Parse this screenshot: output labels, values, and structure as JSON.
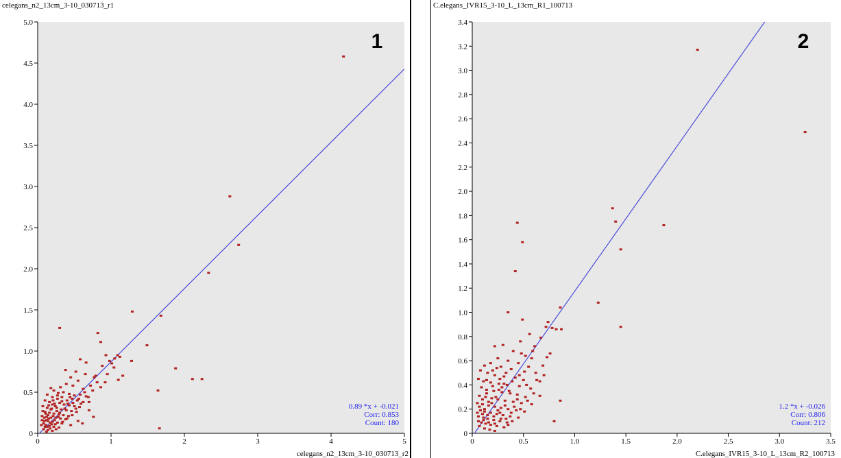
{
  "colors": {
    "plot_bg": "#e8e8e8",
    "point": "#b22222",
    "fit_line": "#4b4bdc",
    "stats_text": "#2222ee",
    "axis": "#000000"
  },
  "chart_data": [
    {
      "type": "scatter",
      "panel_number": "1",
      "title": "celegans_n2_13cm_3-10_030713_r1",
      "xlabel": "celegans_n2_13cm_3-10_030713_r2",
      "ylabel": "",
      "xlim": [
        0,
        5
      ],
      "ylim": [
        0,
        5
      ],
      "xticks": [
        "0",
        "1",
        "2",
        "3",
        "4",
        "5"
      ],
      "yticks": [
        "0",
        "0.5",
        "1.0",
        "1.5",
        "2.0",
        "2.5",
        "3.0",
        "3.5",
        "4.0",
        "4.5",
        "5.0"
      ],
      "grid": false,
      "fit": {
        "slope": 0.89,
        "intercept": -0.021
      },
      "stats": {
        "equation": "0.89 *x + -0.021",
        "corr": "Corr: 0.853",
        "count": "Count: 180"
      },
      "points": [
        [
          4.17,
          4.58
        ],
        [
          2.62,
          2.88
        ],
        [
          2.74,
          2.29
        ],
        [
          2.33,
          1.95
        ],
        [
          1.29,
          1.48
        ],
        [
          1.68,
          1.43
        ],
        [
          1.49,
          1.07
        ],
        [
          1.88,
          0.79
        ],
        [
          2.24,
          0.66
        ],
        [
          2.11,
          0.66
        ],
        [
          1.64,
          0.52
        ],
        [
          1.66,
          0.06
        ],
        [
          0.3,
          1.28
        ],
        [
          0.82,
          1.22
        ],
        [
          0.86,
          1.11
        ],
        [
          0.93,
          0.95
        ],
        [
          1.09,
          0.95
        ],
        [
          1.05,
          0.91
        ],
        [
          1.12,
          0.93
        ],
        [
          0.98,
          0.88
        ],
        [
          1.28,
          0.88
        ],
        [
          0.88,
          0.82
        ],
        [
          1.04,
          0.8
        ],
        [
          0.79,
          0.7
        ],
        [
          1.16,
          0.7
        ],
        [
          0.77,
          0.68
        ],
        [
          1.1,
          0.65
        ],
        [
          0.58,
          0.9
        ],
        [
          0.66,
          0.86
        ],
        [
          0.38,
          0.77
        ],
        [
          0.52,
          0.75
        ],
        [
          0.65,
          0.72
        ],
        [
          0.45,
          0.68
        ],
        [
          0.55,
          0.64
        ],
        [
          0.72,
          0.58
        ],
        [
          0.86,
          0.56
        ],
        [
          0.39,
          0.6
        ],
        [
          0.31,
          0.56
        ],
        [
          0.48,
          0.58
        ],
        [
          0.62,
          0.54
        ],
        [
          0.92,
          0.62
        ],
        [
          0.18,
          0.55
        ],
        [
          0.22,
          0.52
        ],
        [
          0.28,
          0.49
        ],
        [
          0.35,
          0.5
        ],
        [
          0.43,
          0.48
        ],
        [
          0.5,
          0.46
        ],
        [
          0.58,
          0.47
        ],
        [
          0.66,
          0.45
        ],
        [
          0.13,
          0.47
        ],
        [
          0.2,
          0.44
        ],
        [
          0.27,
          0.42
        ],
        [
          0.33,
          0.44
        ],
        [
          0.4,
          0.4
        ],
        [
          0.47,
          0.42
        ],
        [
          0.54,
          0.4
        ],
        [
          0.62,
          0.38
        ],
        [
          0.7,
          0.38
        ],
        [
          0.1,
          0.4
        ],
        [
          0.16,
          0.38
        ],
        [
          0.23,
          0.36
        ],
        [
          0.3,
          0.37
        ],
        [
          0.36,
          0.35
        ],
        [
          0.43,
          0.34
        ],
        [
          0.5,
          0.33
        ],
        [
          0.57,
          0.32
        ],
        [
          0.07,
          0.33
        ],
        [
          0.13,
          0.31
        ],
        [
          0.19,
          0.3
        ],
        [
          0.26,
          0.31
        ],
        [
          0.32,
          0.29
        ],
        [
          0.39,
          0.28
        ],
        [
          0.46,
          0.27
        ],
        [
          0.53,
          0.26
        ],
        [
          0.1,
          0.26
        ],
        [
          0.16,
          0.25
        ],
        [
          0.22,
          0.24
        ],
        [
          0.29,
          0.23
        ],
        [
          0.35,
          0.22
        ],
        [
          0.42,
          0.21
        ],
        [
          0.06,
          0.21
        ],
        [
          0.12,
          0.2
        ],
        [
          0.18,
          0.19
        ],
        [
          0.25,
          0.19
        ],
        [
          0.31,
          0.18
        ],
        [
          0.38,
          0.17
        ],
        [
          0.09,
          0.15
        ],
        [
          0.14,
          0.15
        ],
        [
          0.2,
          0.14
        ],
        [
          0.27,
          0.13
        ],
        [
          0.33,
          0.12
        ],
        [
          0.05,
          0.1
        ],
        [
          0.11,
          0.1
        ],
        [
          0.16,
          0.09
        ],
        [
          0.22,
          0.08
        ],
        [
          0.29,
          0.07
        ],
        [
          0.08,
          0.05
        ],
        [
          0.14,
          0.04
        ],
        [
          0.2,
          0.03
        ],
        [
          0.12,
          0.02
        ],
        [
          0.55,
          0.15
        ],
        [
          0.61,
          0.12
        ],
        [
          0.45,
          0.1
        ],
        [
          0.7,
          0.28
        ],
        [
          0.76,
          0.2
        ],
        [
          0.08,
          0.12
        ],
        [
          0.13,
          0.08
        ],
        [
          0.17,
          0.13
        ],
        [
          0.24,
          0.11
        ],
        [
          0.15,
          0.18
        ],
        [
          0.21,
          0.21
        ],
        [
          0.26,
          0.27
        ],
        [
          0.11,
          0.24
        ],
        [
          0.18,
          0.29
        ],
        [
          0.24,
          0.33
        ],
        [
          0.15,
          0.34
        ],
        [
          0.21,
          0.4
        ],
        [
          0.27,
          0.46
        ],
        [
          0.33,
          0.39
        ],
        [
          0.12,
          0.16
        ],
        [
          0.09,
          0.19
        ],
        [
          0.19,
          0.11
        ],
        [
          0.23,
          0.16
        ],
        [
          0.28,
          0.2
        ],
        [
          0.06,
          0.16
        ],
        [
          0.14,
          0.22
        ],
        [
          0.1,
          0.08
        ],
        [
          0.17,
          0.06
        ],
        [
          0.25,
          0.05
        ],
        [
          0.07,
          0.27
        ],
        [
          0.2,
          0.35
        ],
        [
          0.3,
          0.25
        ],
        [
          0.37,
          0.3
        ],
        [
          0.41,
          0.36
        ],
        [
          0.34,
          0.14
        ],
        [
          0.4,
          0.18
        ],
        [
          0.47,
          0.22
        ],
        [
          0.52,
          0.3
        ],
        [
          0.59,
          0.36
        ],
        [
          0.44,
          0.44
        ],
        [
          0.48,
          0.37
        ],
        [
          0.56,
          0.42
        ],
        [
          0.64,
          0.5
        ],
        [
          0.69,
          0.44
        ],
        [
          0.75,
          0.52
        ],
        [
          0.81,
          0.62
        ],
        [
          0.95,
          0.72
        ],
        [
          1.01,
          0.85
        ]
      ]
    },
    {
      "type": "scatter",
      "panel_number": "2",
      "title": "C.elegans_IVR15_3-10_L_13cm_R1_100713",
      "xlabel": "C.elegans_IVR15_3-10_L_13cm_R2_100713",
      "ylabel": "",
      "xlim": [
        0,
        3.5
      ],
      "ylim": [
        0,
        3.4
      ],
      "xticks": [
        "0",
        "0.5",
        "1.0",
        "1.5",
        "2.0",
        "2.5",
        "3.0",
        "3.5"
      ],
      "yticks": [
        "0",
        "0.2",
        "0.4",
        "0.6",
        "0.8",
        "1.0",
        "1.2",
        "1.4",
        "1.6",
        "1.8",
        "2.0",
        "2.2",
        "2.4",
        "2.6",
        "2.8",
        "3.0",
        "3.2",
        "3.4"
      ],
      "grid": false,
      "fit": {
        "slope": 1.2,
        "intercept": -0.026
      },
      "stats": {
        "equation": "1.2 *x + -0.026",
        "corr": "Corr: 0.806",
        "count": "Count: 212"
      },
      "points": [
        [
          2.2,
          3.17
        ],
        [
          3.25,
          2.49
        ],
        [
          1.37,
          1.86
        ],
        [
          1.4,
          1.75
        ],
        [
          1.87,
          1.72
        ],
        [
          0.44,
          1.74
        ],
        [
          0.49,
          1.58
        ],
        [
          1.45,
          1.52
        ],
        [
          0.42,
          1.34
        ],
        [
          1.23,
          1.08
        ],
        [
          0.86,
          1.04
        ],
        [
          0.35,
          1.0
        ],
        [
          0.49,
          0.94
        ],
        [
          1.45,
          0.88
        ],
        [
          0.74,
          0.92
        ],
        [
          0.72,
          0.88
        ],
        [
          0.78,
          0.87
        ],
        [
          0.82,
          0.86
        ],
        [
          0.87,
          0.86
        ],
        [
          0.56,
          0.82
        ],
        [
          0.67,
          0.79
        ],
        [
          0.61,
          0.72
        ],
        [
          0.47,
          0.76
        ],
        [
          0.3,
          0.73
        ],
        [
          0.22,
          0.72
        ],
        [
          0.4,
          0.68
        ],
        [
          0.52,
          0.64
        ],
        [
          0.25,
          0.62
        ],
        [
          0.35,
          0.6
        ],
        [
          0.45,
          0.58
        ],
        [
          0.18,
          0.58
        ],
        [
          0.12,
          0.56
        ],
        [
          0.28,
          0.55
        ],
        [
          0.38,
          0.53
        ],
        [
          0.55,
          0.55
        ],
        [
          0.62,
          0.5
        ],
        [
          0.7,
          0.48
        ],
        [
          0.08,
          0.52
        ],
        [
          0.15,
          0.5
        ],
        [
          0.22,
          0.48
        ],
        [
          0.31,
          0.47
        ],
        [
          0.42,
          0.46
        ],
        [
          0.5,
          0.44
        ],
        [
          0.66,
          0.43
        ],
        [
          0.06,
          0.45
        ],
        [
          0.11,
          0.43
        ],
        [
          0.18,
          0.42
        ],
        [
          0.26,
          0.41
        ],
        [
          0.34,
          0.4
        ],
        [
          0.46,
          0.39
        ],
        [
          0.57,
          0.37
        ],
        [
          0.09,
          0.38
        ],
        [
          0.14,
          0.36
        ],
        [
          0.21,
          0.35
        ],
        [
          0.29,
          0.34
        ],
        [
          0.37,
          0.33
        ],
        [
          0.44,
          0.32
        ],
        [
          0.52,
          0.3
        ],
        [
          0.07,
          0.31
        ],
        [
          0.13,
          0.3
        ],
        [
          0.19,
          0.29
        ],
        [
          0.25,
          0.28
        ],
        [
          0.32,
          0.27
        ],
        [
          0.4,
          0.26
        ],
        [
          0.48,
          0.25
        ],
        [
          0.58,
          0.24
        ],
        [
          0.05,
          0.25
        ],
        [
          0.1,
          0.24
        ],
        [
          0.16,
          0.23
        ],
        [
          0.22,
          0.22
        ],
        [
          0.28,
          0.21
        ],
        [
          0.35,
          0.2
        ],
        [
          0.43,
          0.19
        ],
        [
          0.51,
          0.18
        ],
        [
          0.08,
          0.19
        ],
        [
          0.12,
          0.18
        ],
        [
          0.18,
          0.17
        ],
        [
          0.24,
          0.16
        ],
        [
          0.3,
          0.15
        ],
        [
          0.37,
          0.14
        ],
        [
          0.45,
          0.13
        ],
        [
          0.06,
          0.14
        ],
        [
          0.11,
          0.13
        ],
        [
          0.15,
          0.12
        ],
        [
          0.21,
          0.11
        ],
        [
          0.27,
          0.1
        ],
        [
          0.34,
          0.09
        ],
        [
          0.09,
          0.09
        ],
        [
          0.13,
          0.08
        ],
        [
          0.18,
          0.07
        ],
        [
          0.24,
          0.06
        ],
        [
          0.31,
          0.05
        ],
        [
          0.07,
          0.06
        ],
        [
          0.12,
          0.04
        ],
        [
          0.17,
          0.03
        ],
        [
          0.22,
          0.02
        ],
        [
          0.8,
          0.1
        ],
        [
          0.86,
          0.27
        ],
        [
          0.66,
          0.31
        ],
        [
          0.73,
          0.63
        ],
        [
          0.59,
          0.68
        ],
        [
          0.51,
          0.51
        ],
        [
          0.46,
          0.48
        ],
        [
          0.39,
          0.43
        ],
        [
          0.33,
          0.5
        ],
        [
          0.26,
          0.36
        ],
        [
          0.2,
          0.39
        ],
        [
          0.14,
          0.33
        ],
        [
          0.1,
          0.28
        ],
        [
          0.16,
          0.26
        ],
        [
          0.23,
          0.3
        ],
        [
          0.29,
          0.38
        ],
        [
          0.36,
          0.35
        ],
        [
          0.41,
          0.22
        ],
        [
          0.47,
          0.2
        ],
        [
          0.54,
          0.27
        ],
        [
          0.6,
          0.33
        ],
        [
          0.07,
          0.22
        ],
        [
          0.12,
          0.2
        ],
        [
          0.19,
          0.25
        ],
        [
          0.25,
          0.19
        ],
        [
          0.32,
          0.23
        ],
        [
          0.38,
          0.17
        ],
        [
          0.44,
          0.28
        ],
        [
          0.05,
          0.17
        ],
        [
          0.1,
          0.16
        ],
        [
          0.15,
          0.15
        ],
        [
          0.21,
          0.14
        ],
        [
          0.27,
          0.17
        ],
        [
          0.33,
          0.12
        ],
        [
          0.39,
          0.1
        ],
        [
          0.06,
          0.1
        ],
        [
          0.11,
          0.11
        ],
        [
          0.16,
          0.09
        ],
        [
          0.22,
          0.08
        ],
        [
          0.28,
          0.12
        ],
        [
          0.35,
          0.07
        ],
        [
          0.14,
          0.44
        ],
        [
          0.2,
          0.52
        ],
        [
          0.27,
          0.45
        ],
        [
          0.24,
          0.54
        ],
        [
          0.31,
          0.41
        ],
        [
          0.53,
          0.4
        ],
        [
          0.63,
          0.44
        ],
        [
          0.69,
          0.56
        ],
        [
          0.76,
          0.66
        ],
        [
          0.58,
          0.62
        ],
        [
          0.48,
          0.66
        ]
      ]
    }
  ]
}
